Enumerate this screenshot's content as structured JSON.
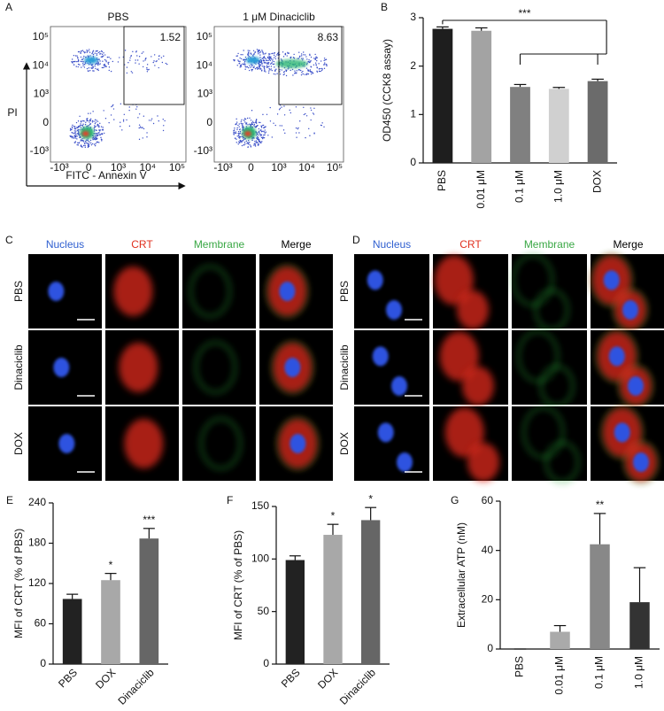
{
  "flow_cytometry": {
    "label": "A",
    "ylabel": "PI",
    "xlabel": "FITC - Annexin V",
    "plots": [
      {
        "title": "PBS",
        "gate": 1.52
      },
      {
        "title": "1 μM Dinaciclib",
        "gate": 8.63
      }
    ],
    "xticks": [
      "-10³",
      "0",
      "10³",
      "10⁴",
      "10⁵"
    ],
    "yticks": [
      "10⁵",
      "10⁴",
      "10³",
      "0",
      "-10³"
    ]
  },
  "microscopy": [
    {
      "label": "C",
      "columns": [
        {
          "text": "Nucleus",
          "color": "#2f5fd0"
        },
        {
          "text": "CRT",
          "color": "#e0301e"
        },
        {
          "text": "Membrane",
          "color": "#3aa845"
        },
        {
          "text": "Merge",
          "color": "#000000"
        }
      ],
      "rows": [
        "PBS",
        "Dinaciclib",
        "DOX"
      ]
    },
    {
      "label": "D",
      "columns": [
        {
          "text": "Nucleus",
          "color": "#2f5fd0"
        },
        {
          "text": "CRT",
          "color": "#e0301e"
        },
        {
          "text": "Membrane",
          "color": "#3aa845"
        },
        {
          "text": "Merge",
          "color": "#000000"
        }
      ],
      "rows": [
        "PBS",
        "Dinaciclib",
        "DOX"
      ]
    }
  ],
  "chart_data": [
    {
      "type": "bar",
      "label": "B",
      "ylabel": "OD450 (CCK8 assay)",
      "categories": [
        "PBS",
        "0.01 μM",
        "0.1 μM",
        "1.0 μM",
        "DOX"
      ],
      "values": [
        2.77,
        2.73,
        1.57,
        1.53,
        1.69
      ],
      "errors": [
        0.04,
        0.06,
        0.05,
        0.03,
        0.04
      ],
      "colors": [
        "#1e1e1e",
        "#a3a3a3",
        "#808080",
        "#d0d0d0",
        "#6b6b6b"
      ],
      "ylim": [
        0,
        3
      ],
      "yticks": [
        0,
        1,
        2,
        3
      ],
      "significance": "***"
    },
    {
      "type": "bar",
      "label": "E",
      "ylabel": "MFI of CRT (% of PBS)",
      "categories": [
        "PBS",
        "DOX",
        "Dinaciclib"
      ],
      "values": [
        97,
        125,
        187
      ],
      "errors": [
        7,
        10,
        15
      ],
      "colors": [
        "#222222",
        "#a8a8a8",
        "#666666"
      ],
      "ylim": [
        0,
        240
      ],
      "yticks": [
        0,
        60,
        120,
        180,
        240
      ],
      "annotations": [
        {
          "category": "DOX",
          "text": "*"
        },
        {
          "category": "Dinaciclib",
          "text": "***"
        }
      ]
    },
    {
      "type": "bar",
      "label": "F",
      "ylabel": "MFI of CRT (% of PBS)",
      "categories": [
        "PBS",
        "DOX",
        "Dinaciclib"
      ],
      "values": [
        99,
        123,
        137
      ],
      "errors": [
        4,
        10,
        12
      ],
      "colors": [
        "#222222",
        "#a8a8a8",
        "#666666"
      ],
      "ylim": [
        0,
        150
      ],
      "yticks": [
        0,
        50,
        100,
        150
      ],
      "annotations": [
        {
          "category": "DOX",
          "text": "*"
        },
        {
          "category": "Dinaciclib",
          "text": "*"
        }
      ]
    },
    {
      "type": "bar",
      "label": "G",
      "ylabel": "Extracellular ATP (nM)",
      "categories": [
        "PBS",
        "0.01 μM",
        "0.1 μM",
        "1.0 μM"
      ],
      "values": [
        0,
        7,
        42.5,
        19
      ],
      "errors": [
        0,
        2.5,
        12.5,
        14
      ],
      "colors": [
        "#222222",
        "#aaaaaa",
        "#888888",
        "#333333"
      ],
      "ylim": [
        0,
        60
      ],
      "yticks": [
        0,
        20,
        40,
        60
      ],
      "annotations": [
        {
          "category": "0.1 μM",
          "text": "**"
        }
      ]
    }
  ]
}
